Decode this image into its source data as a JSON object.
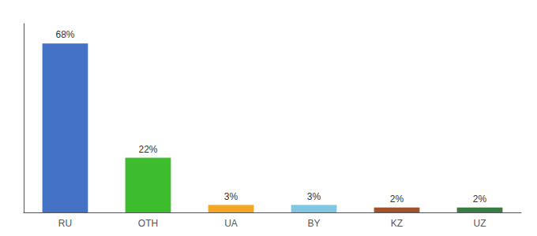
{
  "chart_data": {
    "type": "bar",
    "categories": [
      "RU",
      "OTH",
      "UA",
      "BY",
      "KZ",
      "UZ"
    ],
    "values": [
      68,
      22,
      3,
      3,
      2,
      2
    ],
    "value_labels": [
      "68%",
      "22%",
      "3%",
      "3%",
      "2%",
      "2%"
    ],
    "colors": [
      "#4472C4",
      "#3DBD2E",
      "#F4A623",
      "#7EC8E3",
      "#A0522D",
      "#3A7D44"
    ],
    "ylim": [
      0,
      76
    ],
    "grid": false,
    "data_labels": true,
    "tick_labels": "x"
  }
}
